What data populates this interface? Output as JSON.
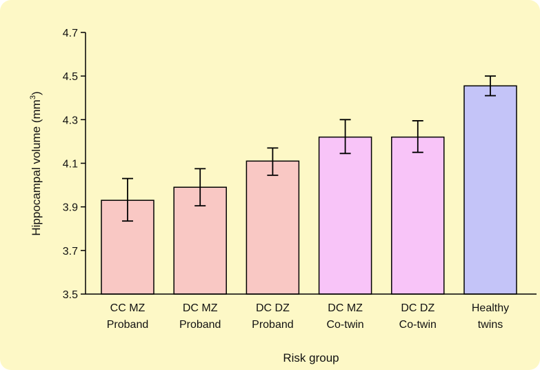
{
  "colors": {
    "panel_background": "#fdf8c6",
    "proband": "#f9c8c4",
    "co_twin": "#f8c4f8",
    "healthy": "#c4c4f8",
    "bar_stroke": "#000000"
  },
  "chart_data": {
    "type": "bar",
    "title": "",
    "xlabel": "Risk group",
    "ylabel": "Hippocampal volume (mm",
    "ylabel_superscript": "3",
    "ylabel_close": ")",
    "ylim": [
      3.5,
      4.7
    ],
    "yticks": [
      "3.5",
      "3.7",
      "3.9",
      "4.1",
      "4.3",
      "4.5",
      "4.7"
    ],
    "ytick_values": [
      3.5,
      3.7,
      3.9,
      4.1,
      4.3,
      4.5,
      4.7
    ],
    "grid": false,
    "categories": [
      [
        "CC MZ",
        "Proband"
      ],
      [
        "DC MZ",
        "Proband"
      ],
      [
        "DC DZ",
        "Proband"
      ],
      [
        "DC MZ",
        "Co-twin"
      ],
      [
        "DC DZ",
        "Co-twin"
      ],
      [
        "Healthy",
        "twins"
      ]
    ],
    "values": [
      3.93,
      3.99,
      4.11,
      4.22,
      4.22,
      4.455
    ],
    "error_low": [
      3.835,
      3.905,
      4.045,
      4.145,
      4.15,
      4.41
    ],
    "error_high": [
      4.03,
      4.075,
      4.17,
      4.3,
      4.295,
      4.5
    ],
    "bar_color_keys": [
      "proband",
      "proband",
      "proband",
      "co_twin",
      "co_twin",
      "healthy"
    ]
  }
}
